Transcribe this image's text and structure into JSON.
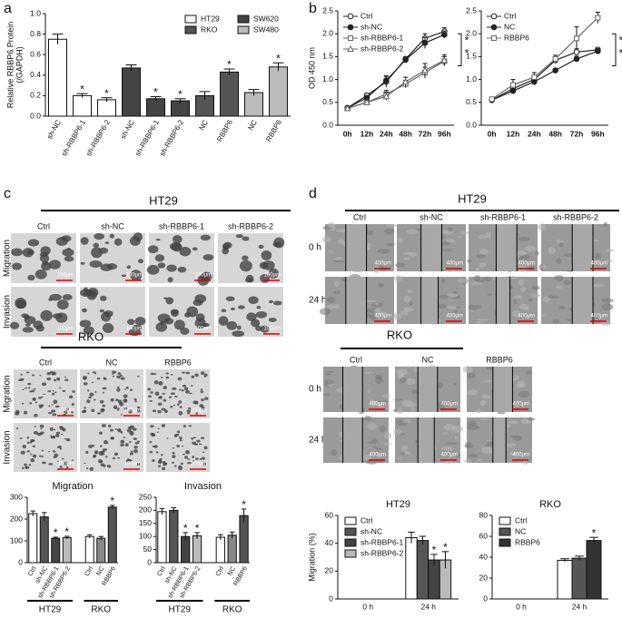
{
  "panel_labels": [
    "a",
    "b",
    "c",
    "d"
  ],
  "image_panels": [
    {
      "title": "HT29",
      "columns": [
        "Ctrl",
        "sh-NC",
        "sh-RBBP6-1",
        "sh-RBBP6-2"
      ],
      "rows": [
        "Migration",
        "Invasion"
      ],
      "scale_bar": "100μm"
    },
    {
      "title": "RKO",
      "columns": [
        "Ctrl",
        "NC",
        "RBBP6"
      ],
      "rows": [
        "Migration",
        "Invasion"
      ],
      "scale_bar": "100μm"
    },
    {
      "title": "HT29",
      "columns": [
        "Ctrl",
        "sh-NC",
        "sh-RBBP6-1",
        "sh-RBBP6-2"
      ],
      "rows": [
        "0 h",
        "24 h"
      ],
      "scale_bar": "400μm"
    },
    {
      "title": "RKO",
      "columns": [
        "Ctrl",
        "NC",
        "RBBP6"
      ],
      "rows": [
        "0 h",
        "24 h"
      ],
      "scale_bar": "400μm"
    }
  ],
  "chart_data": [
    {
      "type": "bar",
      "ylabel": [
        "Relative RBBP6 Protein",
        "(/GAPDH)"
      ],
      "categories": [
        "sh-NC",
        "sh-RBBP6-1",
        "sh-RBBP6-2",
        "sh-NC",
        "sh-RBBP6-1",
        "sh-RBBP6-2",
        "NC",
        "RBBP6",
        "NC",
        "RBBP6"
      ],
      "series": [
        {
          "name": "HT29",
          "color": "#ffffff",
          "values": [
            0.75,
            0.2,
            0.16,
            null,
            null,
            null,
            null,
            null,
            null,
            null
          ],
          "errors": [
            0.05,
            0.02,
            0.02,
            null,
            null,
            null,
            null,
            null,
            null,
            null
          ],
          "stars": [
            null,
            "*",
            "*",
            null,
            null,
            null,
            null,
            null,
            null,
            null
          ]
        },
        {
          "name": "SW620",
          "color": "#444444",
          "values": [
            null,
            null,
            null,
            0.47,
            0.17,
            0.15,
            null,
            null,
            null,
            null
          ],
          "errors": [
            null,
            null,
            null,
            0.03,
            0.02,
            0.02,
            null,
            null,
            null,
            null
          ],
          "stars": [
            null,
            null,
            null,
            null,
            "*",
            "*",
            null,
            null,
            null,
            null
          ]
        },
        {
          "name": "RKO",
          "color": "#555555",
          "values": [
            null,
            null,
            null,
            null,
            null,
            null,
            0.2,
            0.43,
            null,
            null
          ],
          "errors": [
            null,
            null,
            null,
            null,
            null,
            null,
            0.04,
            0.03,
            null,
            null
          ],
          "stars": [
            null,
            null,
            null,
            null,
            null,
            null,
            null,
            "*",
            null,
            null
          ]
        },
        {
          "name": "SW480",
          "color": "#bbbbbb",
          "values": [
            null,
            null,
            null,
            null,
            null,
            null,
            null,
            null,
            0.23,
            0.48
          ],
          "errors": [
            null,
            null,
            null,
            null,
            null,
            null,
            null,
            null,
            0.03,
            0.04
          ],
          "stars": [
            null,
            null,
            null,
            null,
            null,
            null,
            null,
            null,
            null,
            "*"
          ]
        }
      ],
      "ylim": [
        0,
        1
      ],
      "yticks": [
        {
          "value": 0,
          "label": "0.0"
        },
        {
          "value": 0.2,
          "label": "0.2"
        },
        {
          "value": 0.4,
          "label": "0.4"
        },
        {
          "value": 0.6,
          "label": "0.6"
        },
        {
          "value": 0.8,
          "label": "0.8"
        },
        {
          "value": 1,
          "label": "1.0"
        }
      ],
      "legend": "upper right",
      "legend_columns": 2
    },
    {
      "type": "line",
      "ylabel": "OD 450 nm",
      "categories": [
        "0h",
        "12h",
        "24h",
        "48h",
        "72h",
        "96h"
      ],
      "series": [
        {
          "name": "Ctrl",
          "color": "#222222",
          "marker": "open-circle",
          "values": [
            0.38,
            0.65,
            0.95,
            1.45,
            1.9,
            2.05
          ],
          "errors": [
            0.03,
            0.05,
            0.12,
            0.05,
            0.1,
            0.08
          ]
        },
        {
          "name": "sh-NC",
          "color": "#222222",
          "marker": "filled-circle",
          "values": [
            0.38,
            0.6,
            0.98,
            1.43,
            1.8,
            1.98
          ],
          "errors": [
            0.03,
            0.05,
            0.1,
            0.05,
            0.12,
            0.08
          ]
        },
        {
          "name": "sh-RBBP6-1",
          "color": "#666666",
          "marker": "open-square",
          "values": [
            0.37,
            0.5,
            0.68,
            0.9,
            1.15,
            1.4
          ],
          "errors": [
            0.03,
            0.05,
            0.08,
            0.08,
            0.12,
            0.1
          ]
        },
        {
          "name": "sh-RBBP6-2",
          "color": "#666666",
          "marker": "open-triangle",
          "values": [
            0.37,
            0.5,
            0.63,
            0.95,
            1.2,
            1.42
          ],
          "errors": [
            0.03,
            0.05,
            0.08,
            0.1,
            0.15,
            0.12
          ]
        }
      ],
      "ylim": [
        0,
        2.5
      ],
      "yticks": [
        {
          "value": 0,
          "label": "0.0"
        },
        {
          "value": 0.5,
          "label": "0.5"
        },
        {
          "value": 1,
          "label": "1.0"
        },
        {
          "value": 1.5,
          "label": "1.5"
        },
        {
          "value": 2,
          "label": "2.0"
        },
        {
          "value": 2.5,
          "label": "2.5"
        }
      ],
      "legend": "upper left",
      "annotation": [
        "*",
        "*"
      ]
    },
    {
      "type": "line",
      "categories": [
        "0h",
        "12h",
        "24h",
        "48h",
        "72h",
        "96h"
      ],
      "series": [
        {
          "name": "Ctrl",
          "color": "#222222",
          "marker": "open-circle",
          "values": [
            0.55,
            0.8,
            1.0,
            1.42,
            1.6,
            1.65
          ],
          "errors": [
            0.03,
            0.1,
            0.08,
            0.06,
            0.07,
            0.05
          ]
        },
        {
          "name": "NC",
          "color": "#222222",
          "marker": "filled-circle",
          "values": [
            0.55,
            0.75,
            0.95,
            1.2,
            1.45,
            1.62
          ],
          "errors": [
            0.03,
            0.05,
            0.05,
            0.04,
            0.06,
            0.05
          ]
        },
        {
          "name": "RBBP6",
          "color": "#666666",
          "marker": "open-square",
          "values": [
            0.57,
            0.88,
            1.05,
            1.45,
            1.9,
            2.35
          ],
          "errors": [
            0.03,
            0.12,
            0.1,
            0.08,
            0.25,
            0.12
          ]
        }
      ],
      "ylim": [
        0,
        2.5
      ],
      "yticks": [
        {
          "value": 0,
          "label": "0.0"
        },
        {
          "value": 0.5,
          "label": "0.5"
        },
        {
          "value": 1,
          "label": "1.0"
        },
        {
          "value": 1.5,
          "label": "1.5"
        },
        {
          "value": 2,
          "label": "2.0"
        },
        {
          "value": 2.5,
          "label": "2.5"
        }
      ],
      "legend": "upper left",
      "annotation": [
        "*",
        "*"
      ]
    },
    {
      "type": "bar",
      "title": "Migration",
      "groups": [
        {
          "name": "HT29",
          "categories": [
            "Ctrl",
            "sh-NC",
            "sh-RBBP6-1",
            "sh-RBBP6-2"
          ],
          "values": [
            225,
            210,
            112,
            115
          ],
          "errors": [
            12,
            20,
            5,
            6
          ],
          "colors": [
            "#ffffff",
            "#555555",
            "#444444",
            "#bbbbbb"
          ],
          "stars": [
            null,
            null,
            "*",
            "*"
          ]
        },
        {
          "name": "RKO",
          "categories": [
            "Ctrl",
            "NC",
            "RBBP6"
          ],
          "values": [
            120,
            112,
            255
          ],
          "errors": [
            8,
            8,
            8
          ],
          "colors": [
            "#ffffff",
            "#888888",
            "#555555"
          ],
          "stars": [
            null,
            null,
            "*"
          ]
        }
      ],
      "ylim": [
        0,
        300
      ],
      "yticks": [
        0,
        100,
        200,
        300
      ]
    },
    {
      "type": "bar",
      "title": "Invasion",
      "groups": [
        {
          "name": "HT29",
          "categories": [
            "Ctrl",
            "sh-NC",
            "sh-RBBP6-1",
            "sh-RBBP6-2"
          ],
          "values": [
            195,
            200,
            100,
            103
          ],
          "errors": [
            12,
            10,
            15,
            12
          ],
          "colors": [
            "#ffffff",
            "#555555",
            "#444444",
            "#bbbbbb"
          ],
          "stars": [
            null,
            null,
            "*",
            "*"
          ]
        },
        {
          "name": "RKO",
          "categories": [
            "Ctrl",
            "NC",
            "RBBP6"
          ],
          "values": [
            97,
            105,
            180
          ],
          "errors": [
            10,
            12,
            25
          ],
          "colors": [
            "#ffffff",
            "#888888",
            "#555555"
          ],
          "stars": [
            null,
            null,
            "*"
          ]
        }
      ],
      "ylim": [
        0,
        250
      ],
      "yticks": [
        0,
        50,
        100,
        150,
        200,
        250
      ]
    },
    {
      "type": "bar",
      "title": "HT29",
      "ylabel": "Migration (%)",
      "categories": [
        "0 h",
        "24 h"
      ],
      "series": [
        {
          "name": "Ctrl",
          "color": "#ffffff",
          "values": [
            0,
            44
          ],
          "errors": [
            0,
            4
          ]
        },
        {
          "name": "sh-NC",
          "color": "#555555",
          "values": [
            0,
            42
          ],
          "errors": [
            0,
            3
          ]
        },
        {
          "name": "sh-RBBP6-1",
          "color": "#444444",
          "values": [
            0,
            28
          ],
          "errors": [
            0,
            4
          ],
          "stars": [
            null,
            "*"
          ]
        },
        {
          "name": "sh-RBBP6-2",
          "color": "#bbbbbb",
          "values": [
            0,
            28
          ],
          "errors": [
            0,
            6
          ],
          "stars": [
            null,
            "*"
          ]
        }
      ],
      "ylim": [
        0,
        60
      ],
      "yticks": [
        0,
        20,
        40,
        60
      ],
      "legend": "upper left",
      "legend_columns": 1
    },
    {
      "type": "bar",
      "title": "RKO",
      "categories": [
        "0 h",
        "24 h"
      ],
      "series": [
        {
          "name": "Ctrl",
          "color": "#ffffff",
          "values": [
            0,
            37
          ],
          "errors": [
            0,
            1.5
          ]
        },
        {
          "name": "NC",
          "color": "#555555",
          "values": [
            0,
            39
          ],
          "errors": [
            0,
            2
          ]
        },
        {
          "name": "RBBP6",
          "color": "#333333",
          "values": [
            0,
            56
          ],
          "errors": [
            0,
            3
          ],
          "stars": [
            null,
            "*"
          ]
        }
      ],
      "ylim": [
        0,
        80
      ],
      "yticks": [
        0,
        20,
        40,
        60,
        80
      ],
      "legend": "upper left",
      "legend_columns": 1
    }
  ]
}
